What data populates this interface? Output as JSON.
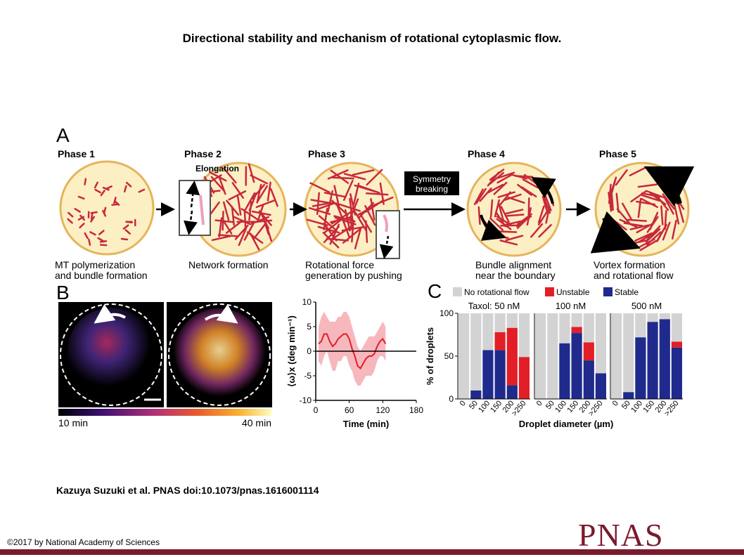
{
  "slide": {
    "title": "Directional stability and mechanism of rotational cytoplasmic flow.",
    "citation": "Kazuya Suzuki et al. PNAS doi:10.1073/pnas.1616001114",
    "copyright": "©2017 by National Academy of Sciences",
    "journal_logo": "PNAS"
  },
  "panel_a": {
    "label": "A",
    "phases": [
      {
        "name": "Phase 1",
        "caption": [
          "MT polymerization",
          "and bundle formation"
        ]
      },
      {
        "name": "Phase 2",
        "caption": [
          "Network formation"
        ],
        "annotation": "Elongation"
      },
      {
        "name": "Phase 3",
        "caption": [
          "Rotational force",
          "generation by pushing"
        ]
      },
      {
        "name": "Phase 4",
        "caption": [
          "Bundle alignment",
          "near the boundary"
        ]
      },
      {
        "name": "Phase 5",
        "caption": [
          "Vortex formation",
          "and rotational flow"
        ]
      }
    ],
    "symmetry_box": [
      "Symmetry",
      "breaking"
    ]
  },
  "panel_b": {
    "label": "B",
    "colorbar": {
      "min_label": "10 min",
      "max_label": "40 min"
    }
  },
  "panel_c": {
    "label": "C",
    "legend": [
      {
        "name": "No rotational flow",
        "color": "#d3d3d3"
      },
      {
        "name": "Unstable",
        "color": "#e21f26"
      },
      {
        "name": "Stable",
        "color": "#1f2a8c"
      }
    ]
  },
  "chart_data": [
    {
      "type": "line",
      "panel": "B",
      "xlabel": "Time (min)",
      "ylabel": "⟨ω⟩x (deg min⁻¹)",
      "xlim": [
        0,
        180
      ],
      "ylim": [
        -10,
        10
      ],
      "xticks": [
        0,
        60,
        120,
        180
      ],
      "yticks": [
        10,
        5,
        0,
        -5,
        -10
      ],
      "colors": {
        "mean": "#e21f26",
        "band": "#f4a6ac"
      },
      "x": [
        5,
        10,
        15,
        20,
        25,
        30,
        35,
        40,
        45,
        50,
        55,
        60,
        65,
        70,
        75,
        80,
        85,
        90,
        95,
        100,
        105,
        110,
        115,
        120,
        125
      ],
      "y": [
        1.5,
        2,
        3.5,
        3.5,
        2,
        1,
        1.5,
        2.5,
        3,
        3.5,
        3.5,
        2.5,
        0.5,
        -1,
        -3,
        -3.5,
        -2.5,
        -1.5,
        -1,
        -1,
        -0.5,
        1,
        2,
        2.5,
        1.5
      ],
      "upper": [
        5,
        7,
        8,
        7,
        6,
        6,
        6,
        7,
        7,
        8,
        8,
        7,
        5,
        3,
        1,
        0,
        1,
        2,
        3,
        3,
        3,
        4,
        5,
        6,
        5
      ],
      "lower": [
        -2,
        -3,
        -1,
        0,
        -2,
        -4,
        -4,
        -2,
        -2,
        -1,
        -1,
        -3,
        -4,
        -6,
        -7,
        -7,
        -6,
        -5,
        -5,
        -5,
        -4,
        -2,
        -1,
        -1,
        -2
      ]
    },
    {
      "type": "bar",
      "panel": "C",
      "stacked": true,
      "facets": [
        {
          "name": "Taxol: 50 nM",
          "categories": [
            "0",
            "50",
            "100",
            "150",
            "200",
            ">250"
          ],
          "series": [
            {
              "name": "Stable",
              "values": [
                0,
                10,
                57,
                57,
                16,
                0
              ]
            },
            {
              "name": "Unstable",
              "values": [
                0,
                0,
                0,
                21,
                67,
                49
              ]
            },
            {
              "name": "No rotational flow",
              "values": [
                100,
                90,
                43,
                22,
                17,
                51
              ]
            }
          ]
        },
        {
          "name": "100 nM",
          "categories": [
            "0",
            "50",
            "100",
            "150",
            "200",
            ">250"
          ],
          "series": [
            {
              "name": "Stable",
              "values": [
                0,
                0,
                65,
                77,
                45,
                30
              ]
            },
            {
              "name": "Unstable",
              "values": [
                0,
                0,
                0,
                7,
                21,
                0
              ]
            },
            {
              "name": "No rotational flow",
              "values": [
                100,
                100,
                35,
                16,
                34,
                70
              ]
            }
          ]
        },
        {
          "name": "500 nM",
          "categories": [
            "0",
            "50",
            "100",
            "150",
            "200",
            ">250"
          ],
          "series": [
            {
              "name": "Stable",
              "values": [
                0,
                8,
                72,
                90,
                93,
                60
              ]
            },
            {
              "name": "Unstable",
              "values": [
                0,
                0,
                0,
                0,
                0,
                7
              ]
            },
            {
              "name": "No rotational flow",
              "values": [
                100,
                92,
                28,
                10,
                7,
                33
              ]
            }
          ]
        }
      ],
      "ylabel": "% of droplets",
      "xlabel": "Droplet diameter (µm)",
      "ylim": [
        0,
        100
      ],
      "yticks": [
        0,
        50,
        100
      ]
    }
  ]
}
